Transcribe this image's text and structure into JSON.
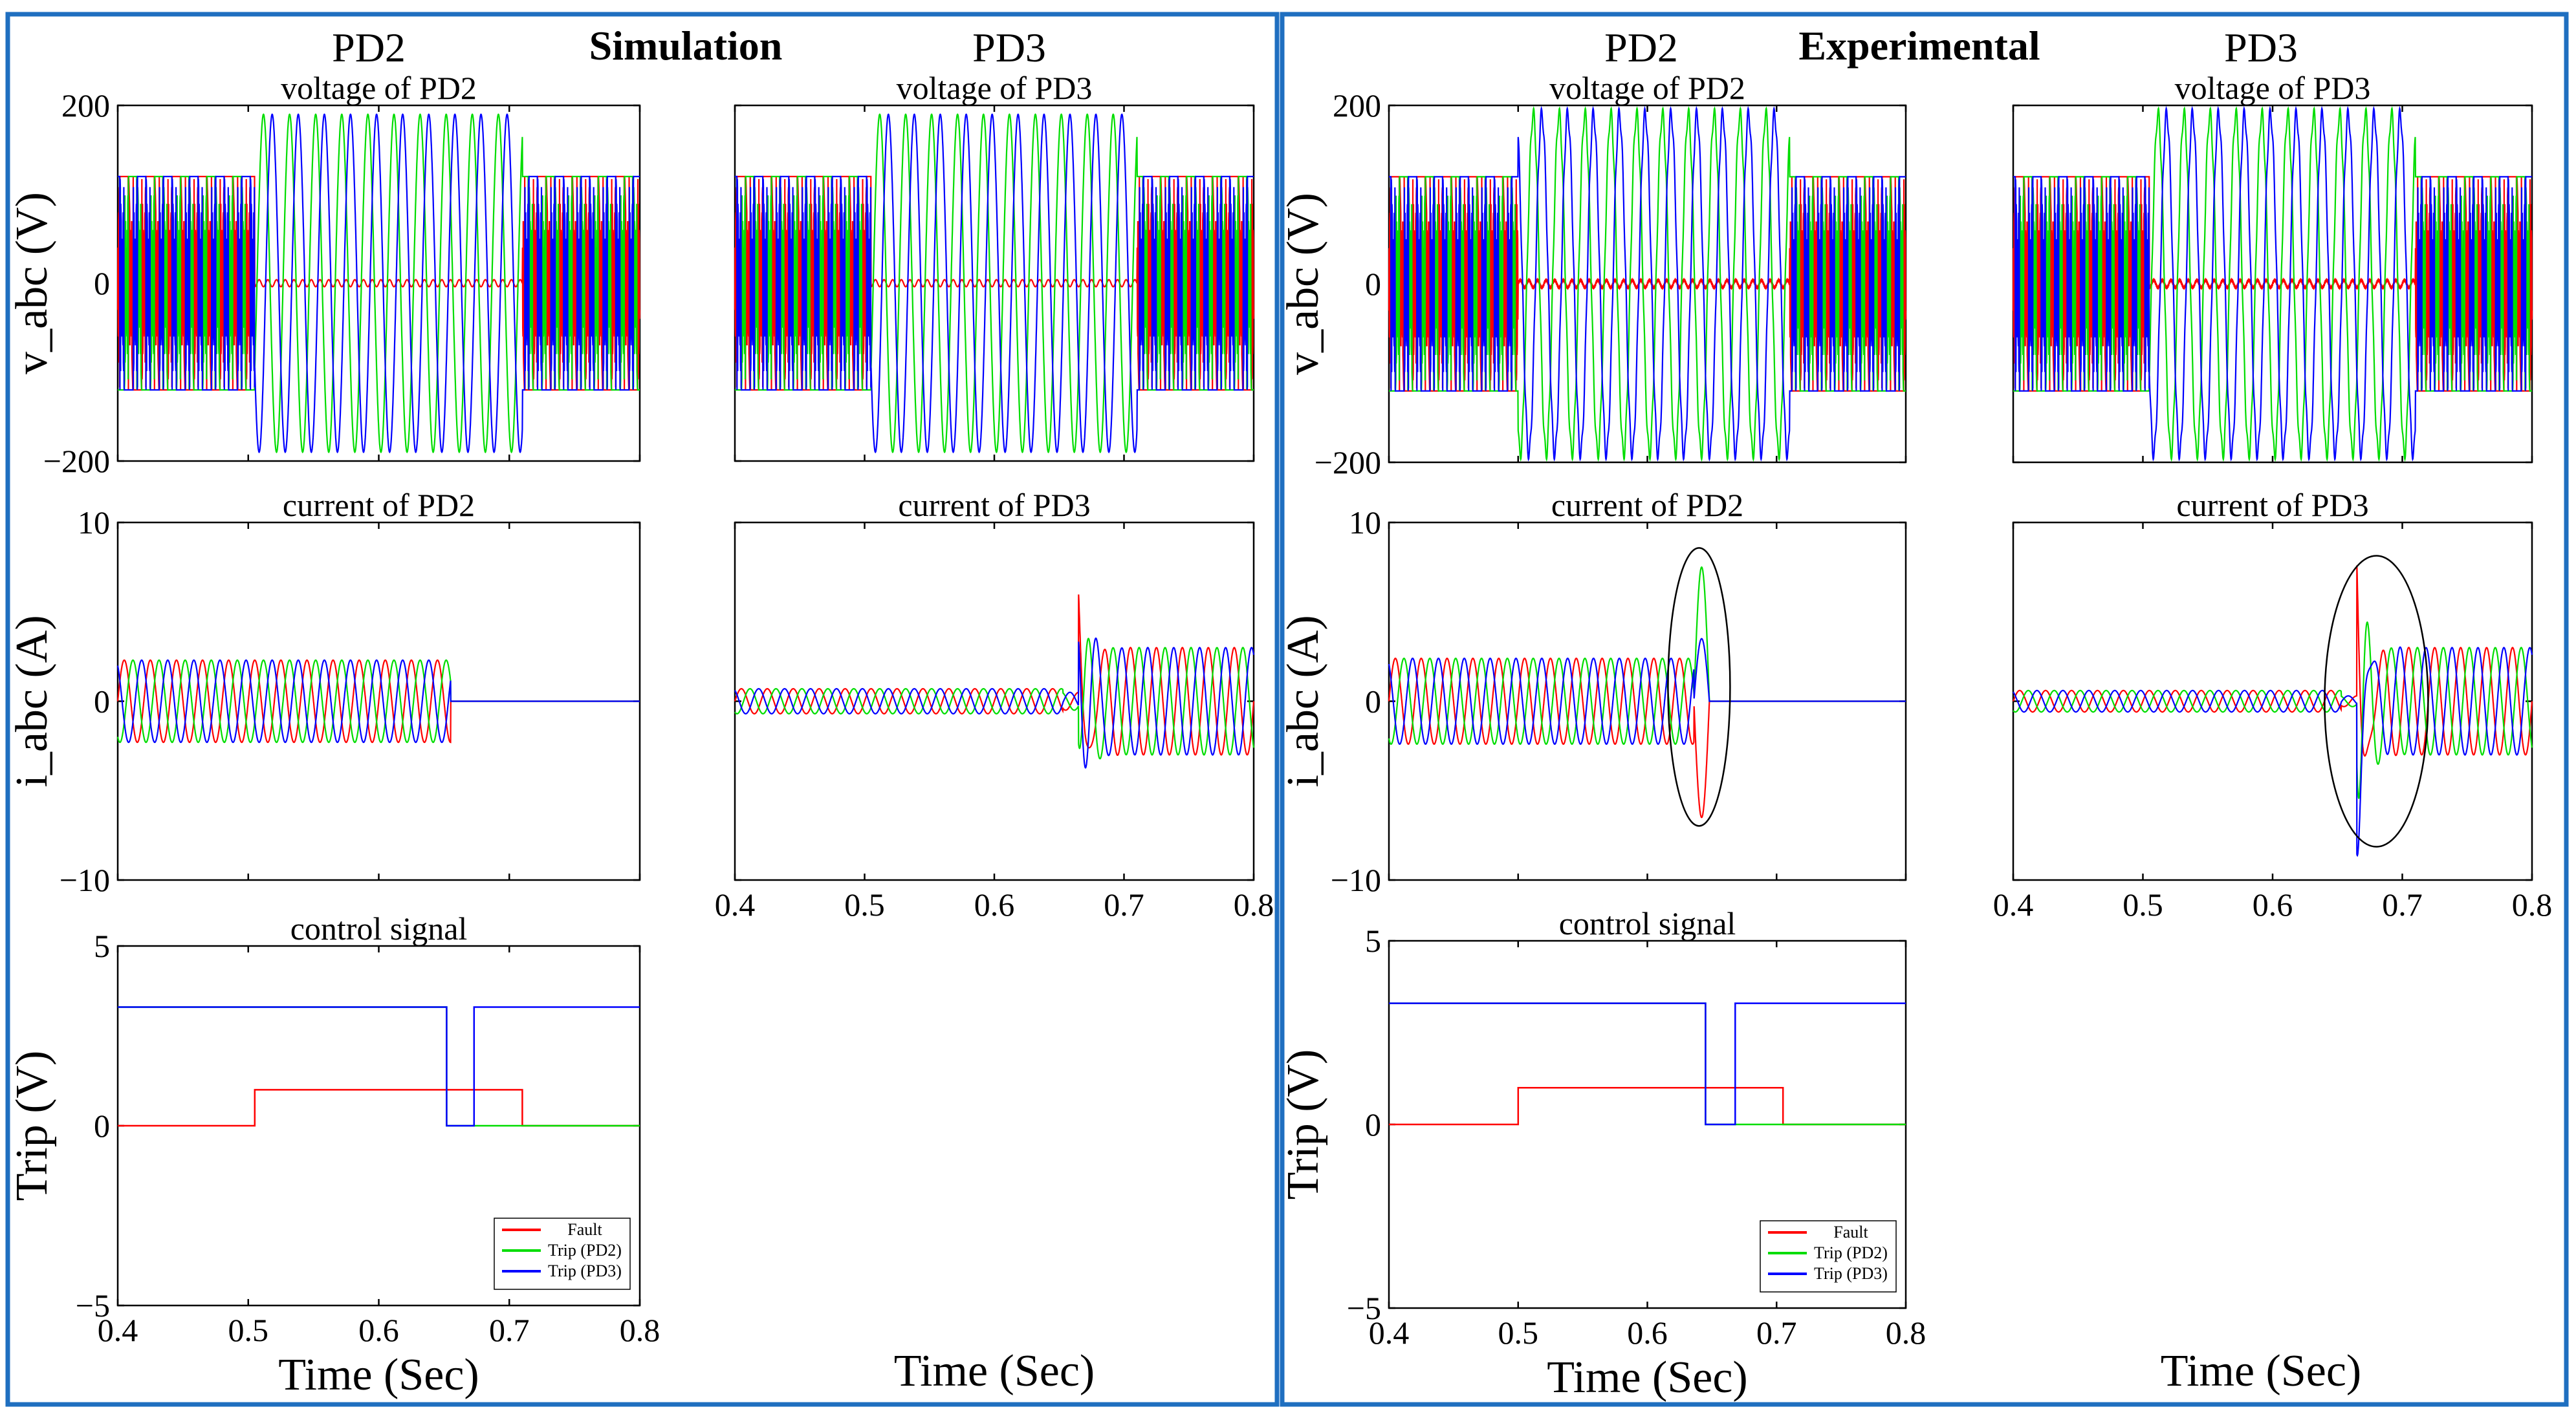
{
  "colors": {
    "phase_a": "#ff0000",
    "phase_b": "#00dd00",
    "phase_c": "#0000ff",
    "frame": "#1f6fc0"
  },
  "sections": [
    {
      "label": "Simulation",
      "col_left": "PD2",
      "col_right": "PD3"
    },
    {
      "label": "Experimental",
      "col_left": "PD2",
      "col_right": "PD3"
    }
  ],
  "xlabel": "Time (Sec)",
  "x_ticks": [
    "0.4",
    "0.5",
    "0.6",
    "0.7",
    "0.8"
  ],
  "legend": [
    "Fault",
    "Trip (PD2)",
    "Trip (PD3)"
  ],
  "chart_data": [
    {
      "id": "sim_v_pd2",
      "type": "line",
      "title": "voltage of PD2",
      "ylabel": "v_abc (V)",
      "ylim": [
        -200,
        200
      ],
      "y_ticks": [
        "200",
        "0",
        "−200"
      ],
      "xlim": [
        0.4,
        0.8
      ],
      "series": [
        {
          "name": "phase a",
          "amplitude_pre": 120,
          "amplitude_fault": 5
        },
        {
          "name": "phase b",
          "amplitude_pre": 120,
          "amplitude_fault": 190
        },
        {
          "name": "phase c",
          "amplitude_pre": 120,
          "amplitude_fault": 190
        }
      ],
      "fault_window": [
        0.505,
        0.71
      ]
    },
    {
      "id": "sim_v_pd3",
      "type": "line",
      "title": "voltage of PD3",
      "ylim": [
        -200,
        200
      ],
      "xlim": [
        0.4,
        0.8
      ],
      "fault_window": [
        0.505,
        0.71
      ]
    },
    {
      "id": "sim_i_pd2",
      "type": "line",
      "title": "current of PD2",
      "ylabel": "i_abc (A)",
      "ylim": [
        -10,
        10
      ],
      "y_ticks": [
        "10",
        "0",
        "−10"
      ],
      "xlim": [
        0.4,
        0.8
      ],
      "trip_time": 0.655,
      "amplitude": 2.3
    },
    {
      "id": "sim_i_pd3",
      "type": "line",
      "title": "current of PD3",
      "ylim": [
        -10,
        10
      ],
      "xlim": [
        0.4,
        0.8
      ],
      "trip_time": 0.665,
      "amplitude_pre": 0.7,
      "amplitude_post": 3.0
    },
    {
      "id": "sim_ctrl",
      "type": "line",
      "title": "control signal",
      "ylabel": "Trip (V)",
      "ylim": [
        -5,
        5
      ],
      "y_ticks": [
        "5",
        "0",
        "−5"
      ],
      "xlim": [
        0.4,
        0.8
      ],
      "series": [
        {
          "name": "Fault",
          "x": [
            0.4,
            0.505,
            0.505,
            0.71,
            0.71,
            0.8
          ],
          "y": [
            0,
            0,
            1,
            1,
            0,
            0
          ]
        },
        {
          "name": "Trip (PD2)",
          "x": [
            0.4,
            0.652,
            0.652,
            0.8
          ],
          "y": [
            3.3,
            3.3,
            0,
            0
          ]
        },
        {
          "name": "Trip (PD3)",
          "x": [
            0.4,
            0.652,
            0.652,
            0.673,
            0.673,
            0.8
          ],
          "y": [
            3.3,
            3.3,
            0,
            0,
            3.3,
            3.3
          ]
        }
      ]
    },
    {
      "id": "exp_v_pd2",
      "type": "line",
      "title": "voltage of PD2",
      "ylabel": "v_abc (V)",
      "ylim": [
        -200,
        200
      ],
      "y_ticks": [
        "200",
        "0",
        "−200"
      ],
      "xlim": [
        0.4,
        0.8
      ],
      "fault_window": [
        0.5,
        0.71
      ]
    },
    {
      "id": "exp_v_pd3",
      "type": "line",
      "title": "voltage of PD3",
      "ylim": [
        -200,
        200
      ],
      "xlim": [
        0.4,
        0.8
      ],
      "fault_window": [
        0.505,
        0.71
      ]
    },
    {
      "id": "exp_i_pd2",
      "type": "line",
      "title": "current of PD2",
      "ylabel": "i_abc (A)",
      "ylim": [
        -10,
        10
      ],
      "y_ticks": [
        "10",
        "0",
        "−10"
      ],
      "xlim": [
        0.4,
        0.8
      ],
      "trip_time": 0.648,
      "amplitude": 2.4
    },
    {
      "id": "exp_i_pd3",
      "type": "line",
      "title": "current of PD3",
      "ylim": [
        -10,
        10
      ],
      "xlim": [
        0.4,
        0.8
      ],
      "trip_time": 0.665,
      "amplitude_pre": 0.6,
      "amplitude_post": 3.0
    },
    {
      "id": "exp_ctrl",
      "type": "line",
      "title": "control signal",
      "ylabel": "Trip (V)",
      "ylim": [
        -5,
        5
      ],
      "y_ticks": [
        "5",
        "0",
        "−5"
      ],
      "xlim": [
        0.4,
        0.8
      ],
      "series": [
        {
          "name": "Fault",
          "x": [
            0.4,
            0.5,
            0.5,
            0.705,
            0.705,
            0.8
          ],
          "y": [
            0,
            0,
            1,
            1,
            0,
            0
          ]
        },
        {
          "name": "Trip (PD2)",
          "x": [
            0.4,
            0.645,
            0.645,
            0.8
          ],
          "y": [
            3.3,
            3.3,
            0,
            0
          ]
        },
        {
          "name": "Trip (PD3)",
          "x": [
            0.4,
            0.645,
            0.645,
            0.668,
            0.668,
            0.8
          ],
          "y": [
            3.3,
            3.3,
            0,
            0,
            3.3,
            3.3
          ]
        }
      ]
    }
  ]
}
